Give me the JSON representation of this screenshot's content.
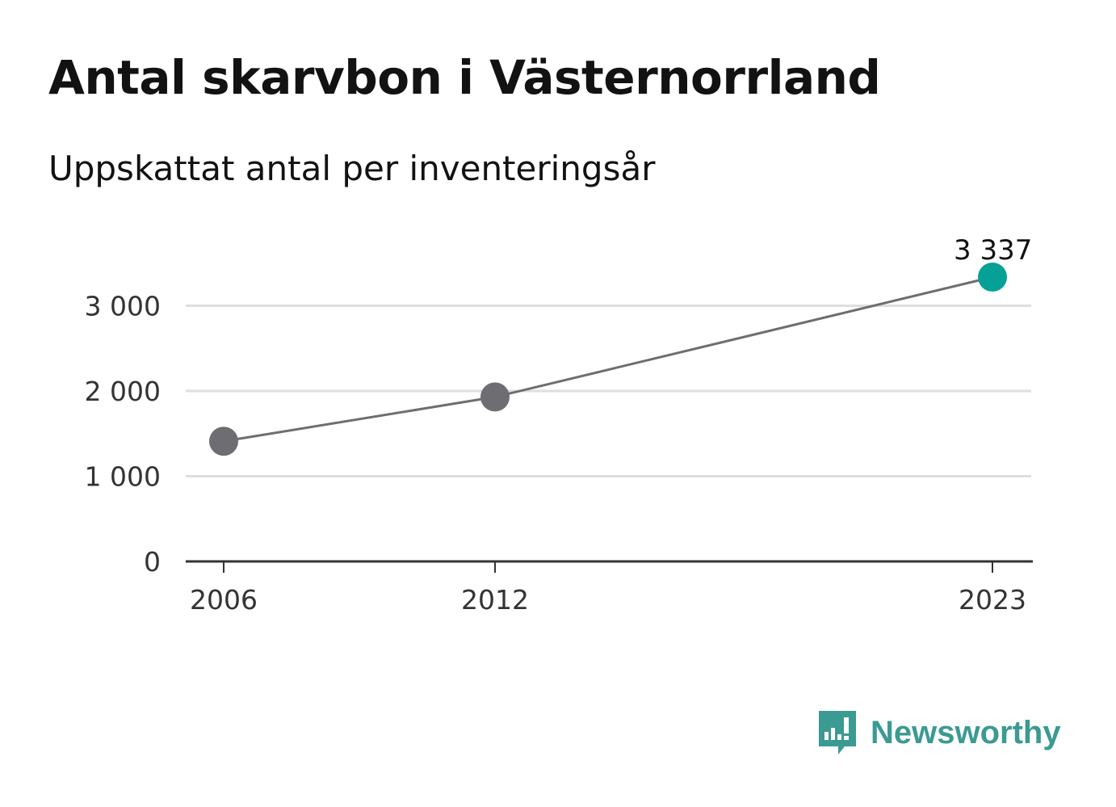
{
  "title": "Antal skarvbon i Västernorrland",
  "subtitle": "Uppskattat antal per inventeringsår",
  "brand": {
    "name": "Newsworthy",
    "icon": "newsworthy-logo-icon"
  },
  "colors": {
    "line": "#6e6d72",
    "point": "#6e6d72",
    "highlight": "#05a197",
    "grid": "#dedede",
    "axis": "#333333",
    "brand": "#3b9a92"
  },
  "chart_data": {
    "type": "line",
    "x": [
      2006,
      2012,
      2023
    ],
    "values": [
      1410,
      1930,
      3337
    ],
    "x_ticks": [
      "2006",
      "2012",
      "2023"
    ],
    "y_ticks": [
      0,
      1000,
      2000,
      3000
    ],
    "y_tick_labels": [
      "0",
      "1 000",
      "2 000",
      "3 000"
    ],
    "ylim": [
      0,
      3337
    ],
    "xlim": [
      2006,
      2023
    ],
    "grid": true,
    "highlight_last": true,
    "annotations": [
      {
        "x": 2023,
        "label": "3 337"
      }
    ]
  }
}
